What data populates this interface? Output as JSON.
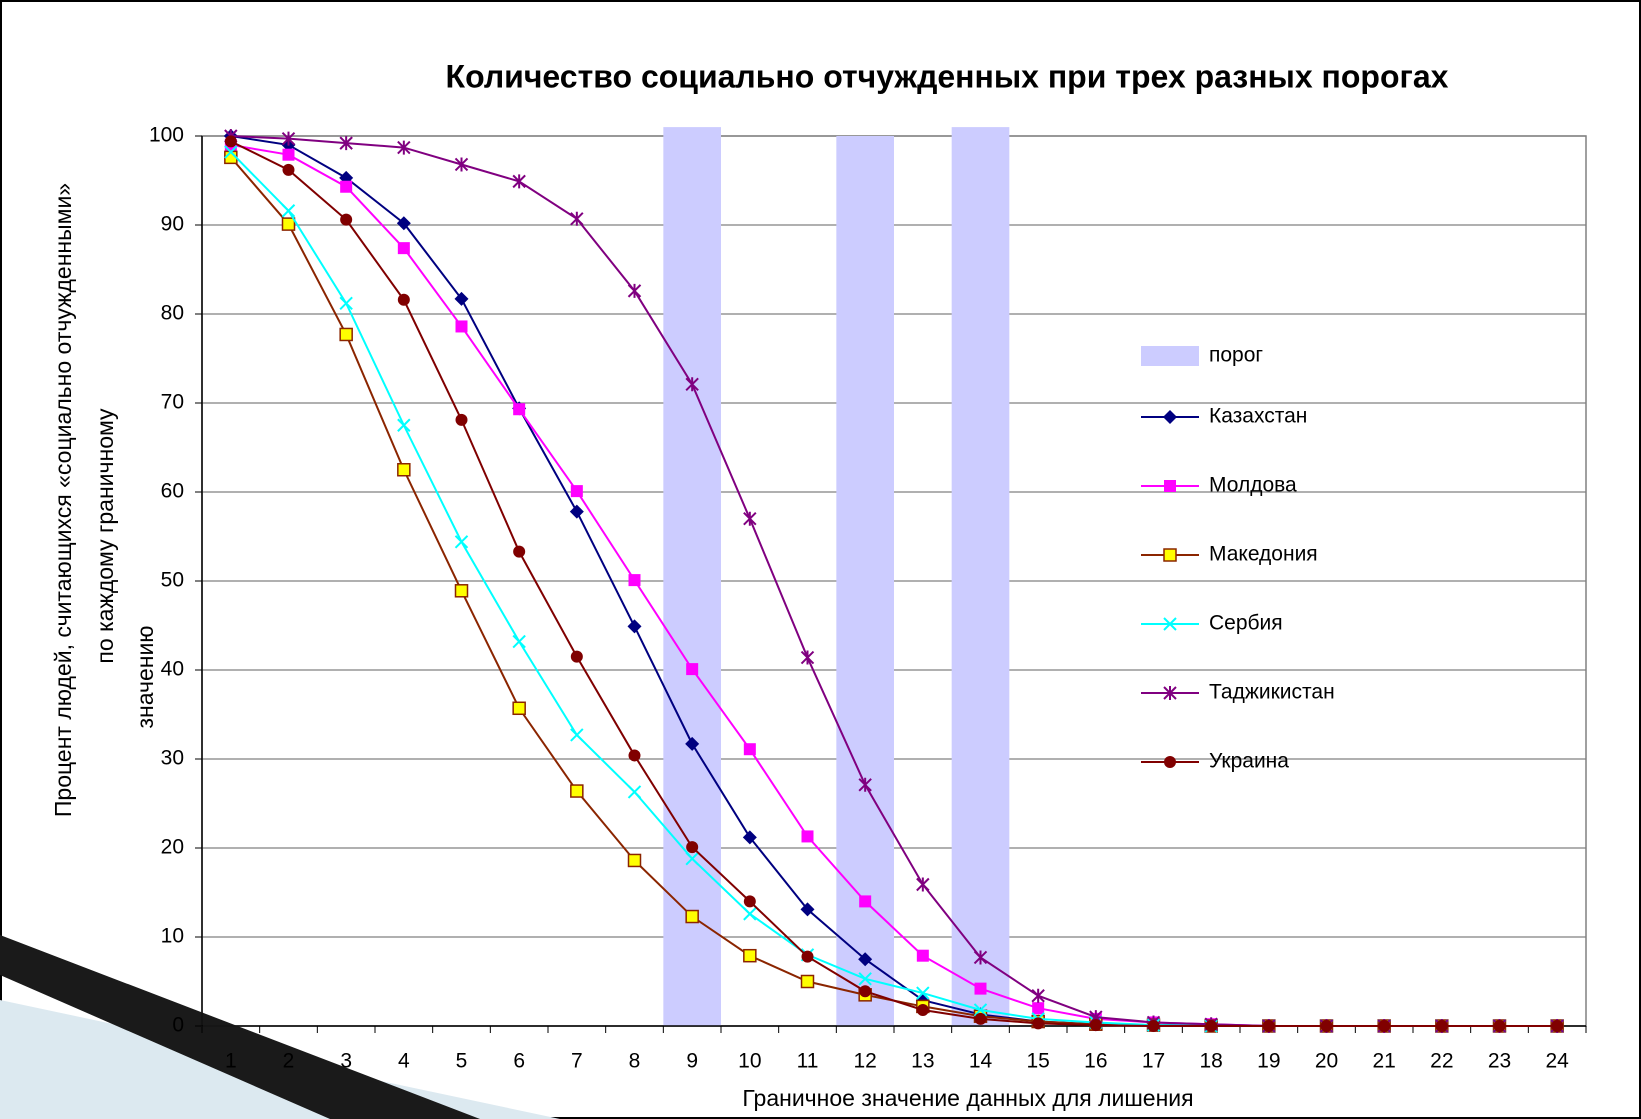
{
  "chart_data": {
    "type": "line",
    "title": "Количество социально отчужденных при трех разных порогах",
    "x_label": "Граничное значение данных для лишения",
    "y_label": [
      "Процент людей, считающихся «социально отчужденными»",
      "по каждому граничному",
      "значению"
    ],
    "categories": [
      1,
      2,
      3,
      4,
      5,
      6,
      7,
      8,
      9,
      10,
      11,
      12,
      13,
      14,
      15,
      16,
      17,
      18,
      19,
      20,
      21,
      22,
      23,
      24
    ],
    "ylim": [
      0,
      100
    ],
    "yticks": [
      0,
      10,
      20,
      30,
      40,
      50,
      60,
      70,
      80,
      90,
      100
    ],
    "grid": true,
    "bar_series": {
      "name": "порог",
      "color": "#ccccff",
      "values": [
        null,
        null,
        null,
        null,
        null,
        null,
        null,
        null,
        101,
        null,
        null,
        100,
        null,
        101,
        null,
        null,
        null,
        null,
        null,
        null,
        null,
        null,
        null,
        null
      ]
    },
    "series": [
      {
        "name": "Казахстан",
        "color": "#000080",
        "marker": "diamond",
        "values": [
          100,
          99,
          95.3,
          90.2,
          81.7,
          69.4,
          57.8,
          44.9,
          31.7,
          21.2,
          13.1,
          7.5,
          2.9,
          1.3,
          0.5,
          0.2,
          0.1,
          0.1,
          0,
          0,
          0,
          0,
          0,
          0
        ]
      },
      {
        "name": "Молдова",
        "color": "#ff00ff",
        "marker": "square",
        "values": [
          99,
          97.9,
          94.3,
          87.4,
          78.6,
          69.3,
          60.1,
          50.1,
          40.1,
          31.1,
          21.3,
          14,
          7.9,
          4.2,
          2,
          0.8,
          0.4,
          0.2,
          0,
          0,
          0,
          0,
          0,
          0
        ]
      },
      {
        "name": "Македония",
        "color": "#8b2500",
        "marker": "square-yellow",
        "values": [
          97.6,
          90.1,
          77.7,
          62.5,
          48.9,
          35.7,
          26.4,
          18.6,
          12.3,
          7.9,
          5,
          3.5,
          2.2,
          1.1,
          0.5,
          0.2,
          0.1,
          0,
          0,
          0,
          0,
          0,
          0,
          0
        ]
      },
      {
        "name": "Сербия",
        "color": "#00ffff",
        "marker": "x",
        "values": [
          98.2,
          91.6,
          81.2,
          67.5,
          54.4,
          43.2,
          32.7,
          26.3,
          18.8,
          12.6,
          8,
          5.3,
          3.7,
          1.8,
          0.8,
          0.4,
          0.1,
          0,
          0,
          0,
          0,
          0,
          0,
          0
        ]
      },
      {
        "name": "Таджикистан",
        "color": "#800080",
        "marker": "star",
        "values": [
          100,
          99.7,
          99.2,
          98.7,
          96.8,
          94.9,
          90.7,
          82.6,
          72.1,
          57,
          41.4,
          27.1,
          15.9,
          7.7,
          3.4,
          1,
          0.4,
          0.2,
          0,
          0,
          0,
          0,
          0,
          0
        ]
      },
      {
        "name": "Украина",
        "color": "#800000",
        "marker": "circle",
        "values": [
          99.4,
          96.2,
          90.6,
          81.6,
          68.1,
          53.3,
          41.5,
          30.4,
          20.1,
          14,
          7.8,
          3.9,
          1.8,
          0.8,
          0.3,
          0.1,
          0,
          0,
          0,
          0,
          0,
          0,
          0,
          0
        ]
      }
    ]
  }
}
